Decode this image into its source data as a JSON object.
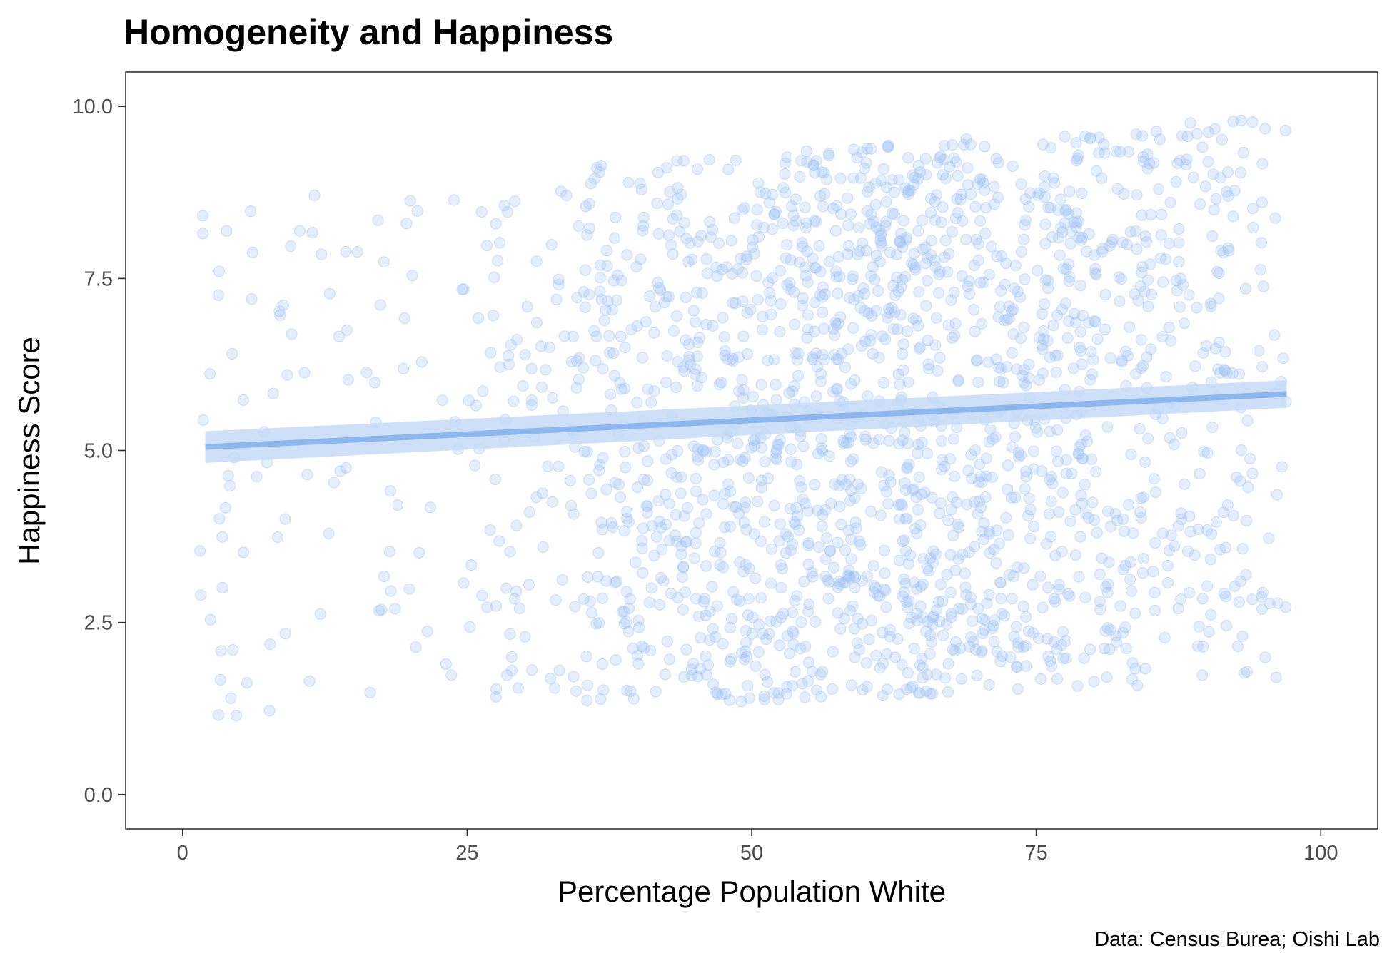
{
  "chart_data": {
    "type": "scatter",
    "title": "Homogeneity and Happiness",
    "xlabel": "Percentage Population White",
    "ylabel": "Happiness Score",
    "caption": "Data: Census Burea; Oishi Lab",
    "xlim": [
      -5,
      105
    ],
    "ylim": [
      -0.5,
      10.5
    ],
    "x_ticks": [
      0,
      25,
      50,
      75,
      100
    ],
    "x_tick_labels": [
      "0",
      "25",
      "50",
      "75",
      "100"
    ],
    "y_ticks": [
      0,
      2.5,
      5,
      7.5,
      10
    ],
    "y_tick_labels": [
      "0.0",
      "2.5",
      "5.0",
      "7.5",
      "10.0"
    ],
    "grid": false,
    "point_color": "#9fc3f3",
    "point_fill_opacity": 0.28,
    "point_count_approx": 2000,
    "point_x_range": [
      1.5,
      97
    ],
    "point_y_range": [
      1.0,
      9.9
    ],
    "regression": {
      "method": "linear",
      "x": [
        2,
        97
      ],
      "y": [
        5.05,
        5.82
      ],
      "ci_lower": [
        4.82,
        5.62
      ],
      "ci_upper": [
        5.28,
        6.02
      ],
      "line_color": "#8db8ef",
      "band_color": "#c6dbf7"
    }
  }
}
